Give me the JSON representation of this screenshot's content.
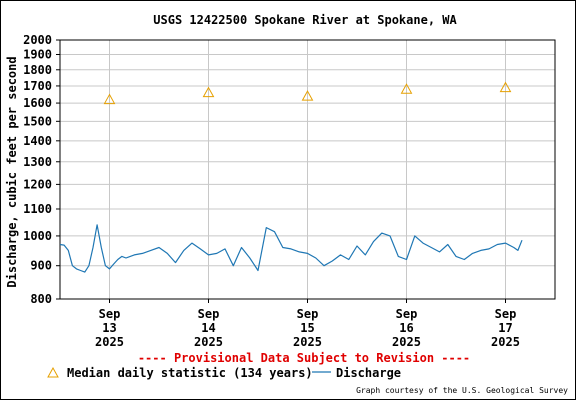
{
  "chart_data": {
    "type": "line",
    "title": "USGS 12422500 Spokane River at Spokane, WA",
    "ylabel": "Discharge, cubic feet per second",
    "xlabel": "",
    "ylim": [
      800,
      2000
    ],
    "y_scale": "log",
    "y_ticks": [
      800,
      900,
      1000,
      1100,
      1200,
      1300,
      1400,
      1500,
      1600,
      1700,
      1800,
      1900,
      2000
    ],
    "x_range": [
      "2025-09-12T12:00",
      "2025-09-17T12:00"
    ],
    "x_ticks": [
      {
        "date": "2025-09-13",
        "label": [
          "Sep",
          "13",
          "2025"
        ]
      },
      {
        "date": "2025-09-14",
        "label": [
          "Sep",
          "14",
          "2025"
        ]
      },
      {
        "date": "2025-09-15",
        "label": [
          "Sep",
          "15",
          "2025"
        ]
      },
      {
        "date": "2025-09-16",
        "label": [
          "Sep",
          "16",
          "2025"
        ]
      },
      {
        "date": "2025-09-17",
        "label": [
          "Sep",
          "17",
          "2025"
        ]
      }
    ],
    "grid": true,
    "series": [
      {
        "name": "Median daily statistic (134 years)",
        "type": "scatter",
        "marker": "triangle",
        "color": "#e6a000",
        "x": [
          "2025-09-13",
          "2025-09-14",
          "2025-09-15",
          "2025-09-16",
          "2025-09-17"
        ],
        "values": [
          1620,
          1660,
          1640,
          1680,
          1690
        ]
      },
      {
        "name": "Discharge",
        "type": "line",
        "color": "#1f77b4",
        "x": [
          "2025-09-12T12:00",
          "2025-09-12T13:00",
          "2025-09-12T14:00",
          "2025-09-12T15:00",
          "2025-09-12T16:00",
          "2025-09-12T17:00",
          "2025-09-12T18:00",
          "2025-09-12T19:00",
          "2025-09-12T20:00",
          "2025-09-12T21:00",
          "2025-09-12T22:00",
          "2025-09-12T23:00",
          "2025-09-13T00:00",
          "2025-09-13T01:00",
          "2025-09-13T02:00",
          "2025-09-13T03:00",
          "2025-09-13T04:00",
          "2025-09-13T06:00",
          "2025-09-13T08:00",
          "2025-09-13T10:00",
          "2025-09-13T12:00",
          "2025-09-13T14:00",
          "2025-09-13T16:00",
          "2025-09-13T18:00",
          "2025-09-13T20:00",
          "2025-09-13T22:00",
          "2025-09-14T00:00",
          "2025-09-14T02:00",
          "2025-09-14T04:00",
          "2025-09-14T06:00",
          "2025-09-14T08:00",
          "2025-09-14T10:00",
          "2025-09-14T12:00",
          "2025-09-14T14:00",
          "2025-09-14T16:00",
          "2025-09-14T18:00",
          "2025-09-14T20:00",
          "2025-09-14T22:00",
          "2025-09-15T00:00",
          "2025-09-15T02:00",
          "2025-09-15T04:00",
          "2025-09-15T06:00",
          "2025-09-15T08:00",
          "2025-09-15T10:00",
          "2025-09-15T12:00",
          "2025-09-15T14:00",
          "2025-09-15T16:00",
          "2025-09-15T18:00",
          "2025-09-15T20:00",
          "2025-09-15T22:00",
          "2025-09-16T00:00",
          "2025-09-16T02:00",
          "2025-09-16T04:00",
          "2025-09-16T06:00",
          "2025-09-16T08:00",
          "2025-09-16T10:00",
          "2025-09-16T12:00",
          "2025-09-16T14:00",
          "2025-09-16T16:00",
          "2025-09-16T18:00",
          "2025-09-16T20:00",
          "2025-09-16T22:00",
          "2025-09-17T00:00",
          "2025-09-17T02:00",
          "2025-09-17T03:00",
          "2025-09-17T04:00"
        ],
        "values": [
          970,
          968,
          950,
          900,
          890,
          885,
          880,
          900,
          960,
          1040,
          960,
          900,
          890,
          905,
          920,
          930,
          925,
          935,
          940,
          950,
          960,
          940,
          910,
          950,
          975,
          955,
          935,
          940,
          955,
          900,
          960,
          925,
          885,
          1030,
          1015,
          960,
          955,
          945,
          940,
          925,
          900,
          915,
          935,
          920,
          965,
          935,
          980,
          1010,
          1000,
          930,
          920,
          1000,
          975,
          960,
          945,
          970,
          930,
          920,
          940,
          950,
          955,
          970,
          975,
          960,
          950,
          985
        ]
      }
    ],
    "legend": {
      "items": [
        {
          "marker": "triangle",
          "label": "Median daily statistic (134 years)"
        },
        {
          "marker": "line",
          "label": "Discharge"
        }
      ]
    },
    "note": "---- Provisional Data Subject to Revision ----",
    "credit": "Graph courtesy of the U.S. Geological Survey"
  },
  "colors": {
    "note": "#e00000",
    "median": "#e6a000",
    "discharge": "#1f77b4",
    "grid": "#c8c8c8"
  }
}
